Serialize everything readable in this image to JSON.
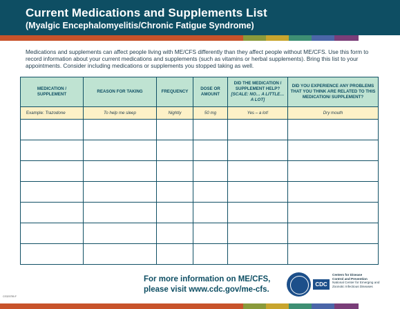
{
  "header": {
    "title": "Current Medications and Supplements List",
    "subtitle": "(Myalgic Encephalomyelitis/Chronic Fatigue Syndrome)"
  },
  "colors": {
    "navy": "#0e4e63",
    "bar": [
      "#c8532b",
      "#c8532b",
      "#c8532b",
      "#c8532b",
      "#c8532b",
      "#c8532b",
      "#c8532b",
      "#c8532b",
      "#c8532b",
      "#c8532b",
      "#8a9a3b",
      "#c8a52e",
      "#3e8f73",
      "#4b66a8",
      "#7a3e79"
    ],
    "header_fill": "#bfe3d2",
    "example_fill": "#fdf1c7"
  },
  "intro": "Medications and supplements can affect people living with ME/CFS differently than they affect people without ME/CFS. Use this form to record information about your current medications and supplements (such as vitamins or herbal supplements). Bring this list to your appointments. Consider including medications or supplements you stopped taking as well.",
  "table": {
    "headers": {
      "medication": "MEDICATION / SUPPLEMENT",
      "reason": "REASON FOR TAKING",
      "frequency": "FREQUENCY",
      "dose": "DOSE OR AMOUNT",
      "helped": "DID THE MEDICATION / SUPPLEMENT HELP?",
      "helped_hint": "[SCALE: NO… A LITTLE… A LOT]",
      "problems": "DID YOU EXPERIENCE ANY PROBLEMS THAT YOU THINK ARE RELATED TO THIS MEDICATION/ SUPPLEMENT?"
    },
    "example": {
      "label": "Example:",
      "medication": "Trazodone",
      "reason": "To help me sleep",
      "frequency": "Nightly",
      "dose": "50 mg",
      "helped": "Yes – a lot!",
      "problems": "Dry mouth"
    },
    "empty_rows": 7
  },
  "footer": {
    "line1": "For more information on ME/CFS,",
    "line2": "please visit www.cdc.gov/me-cfs.",
    "cdc_logo": "CDC",
    "agency1": "Centers for Disease",
    "agency2": "Control and Prevention",
    "agency3": "National Center for Emerging and",
    "agency4": "Zoonotic Infectious Diseases",
    "code": "CS320789-F"
  }
}
